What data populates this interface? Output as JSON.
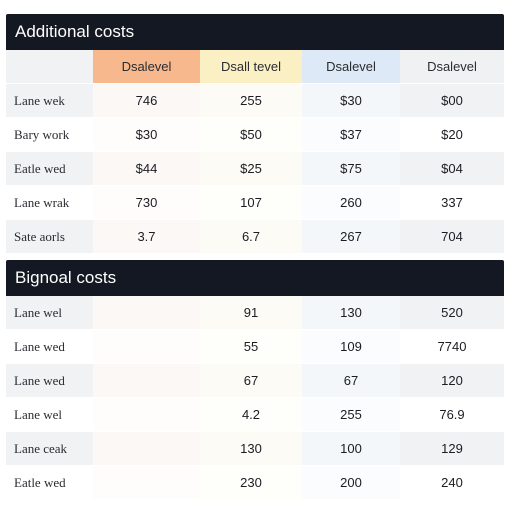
{
  "section1": {
    "title": "Additional costs",
    "columns": [
      "Dsalevel",
      "Dsall tevel",
      "Dsalevel",
      "Dsalevel"
    ],
    "colors": {
      "col0": "#f7b88d",
      "col1": "#fbf0c4",
      "col2": "#dde9f6",
      "header_bg": "#141822"
    },
    "rows": [
      {
        "label": "Lane wek",
        "values": [
          "746",
          "255",
          "$30",
          "$00"
        ]
      },
      {
        "label": "Bary work",
        "values": [
          "$30",
          "$50",
          "$37",
          "$20"
        ]
      },
      {
        "label": "Eatle wed",
        "values": [
          "$44",
          "$25",
          "$75",
          "$04"
        ]
      },
      {
        "label": "Lane wrak",
        "values": [
          "730",
          "107",
          "260",
          "337"
        ]
      },
      {
        "label": "Sate aorls",
        "values": [
          "3.7",
          "6.7",
          "267",
          "704"
        ]
      }
    ]
  },
  "section2": {
    "title": "Bignoal costs",
    "rows": [
      {
        "label": "Lane wel",
        "values": [
          "",
          "91",
          "130",
          "520"
        ]
      },
      {
        "label": "Lane wed",
        "values": [
          "",
          "55",
          "109",
          "7740"
        ]
      },
      {
        "label": "Lane wed",
        "values": [
          "",
          "67",
          "67",
          "120"
        ]
      },
      {
        "label": "Lane wel",
        "values": [
          "",
          "4.2",
          "255",
          "76.9"
        ]
      },
      {
        "label": "Lane ceak",
        "values": [
          "",
          "130",
          "100",
          "129"
        ]
      },
      {
        "label": "Eatle wed",
        "values": [
          "",
          "230",
          "200",
          "240"
        ]
      }
    ]
  }
}
